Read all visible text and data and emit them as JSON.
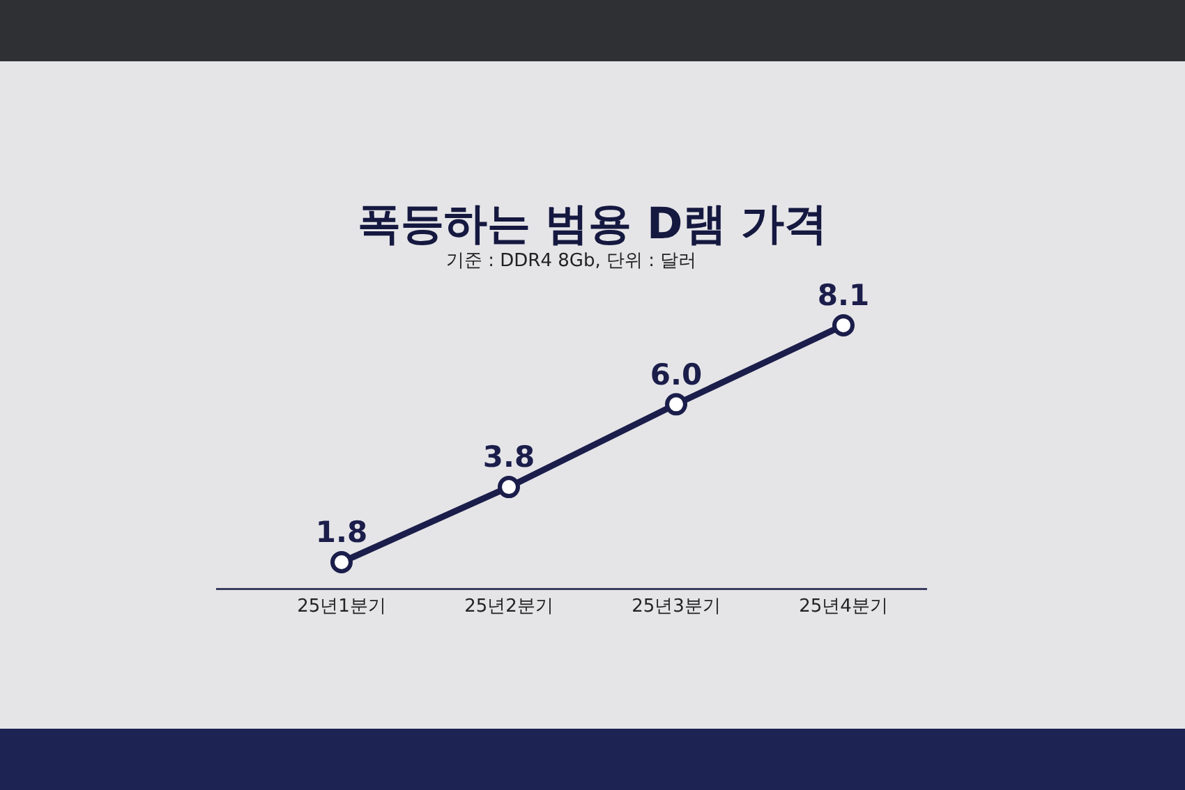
{
  "chart_data": {
    "type": "line",
    "title": "폭등하는 범용 D램 가격",
    "subtitle": "기준 : DDR4 8Gb, 단위 : 달러",
    "categories": [
      "25년1분기",
      "25년2분기",
      "25년3분기",
      "25년4분기"
    ],
    "series": [
      {
        "color": "#1b1d4a",
        "values": [
          1.8,
          3.8,
          6.0,
          8.1
        ],
        "value_labels": [
          "1.8",
          "3.8",
          "6.0",
          "8.1"
        ]
      }
    ],
    "tick_labels": "x",
    "marker": "circle",
    "line_style": "solid"
  }
}
